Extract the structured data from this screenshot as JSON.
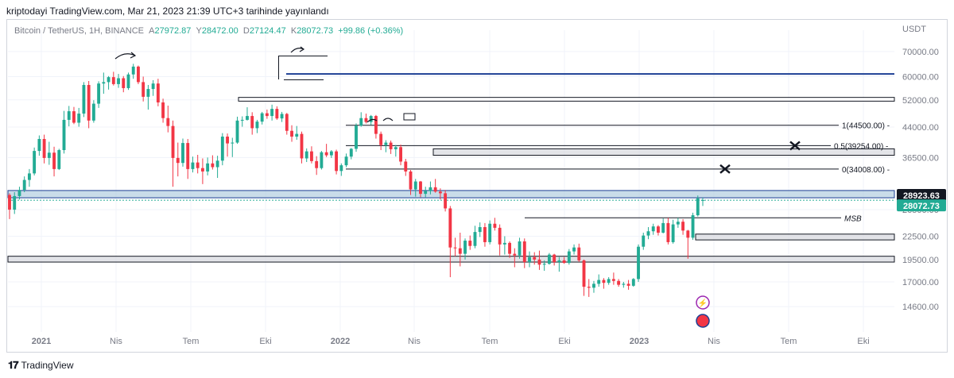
{
  "header": {
    "published": "kriptodayi TradingView.com, Mar 21, 2023 21:39 UTC+3 tarihinde yayınlandı"
  },
  "legend": {
    "symbol": "Bitcoin / TetherUS, 1H, BINANCE",
    "open_label": "A",
    "open": "27972.87",
    "high_label": "Y",
    "high": "28472.00",
    "low_label": "D",
    "low": "27124.47",
    "close_label": "K",
    "close": "28072.73",
    "change": "+99.86 (+0.36%)"
  },
  "footer": {
    "brand": "TradingView"
  },
  "colors": {
    "up": "#22ab94",
    "down": "#f23645",
    "blue_line": "#1c3f94",
    "zone_fill": "#b2cde0",
    "gray_fill": "#d7d9de",
    "price_badge": "#131722",
    "last_badge": "#22ab94"
  },
  "chart_data": {
    "type": "candlestick",
    "y_axis_label": "USDT",
    "y_scale": "log",
    "ylim": [
      12500,
      76000
    ],
    "y_ticks": [
      "70000.00",
      "60000.00",
      "52000.00",
      "44000.00",
      "36500.00",
      "26500.00",
      "22500.00",
      "19500.00",
      "17000.00",
      "14600.00"
    ],
    "x_ticks": [
      "2021",
      "Nis",
      "Tem",
      "Eki",
      "2022",
      "Nis",
      "Tem",
      "Eki",
      "2023",
      "Nis",
      "Tem",
      "Eki"
    ],
    "current_price_badge": "28072.73",
    "level_badge": "28923.63",
    "horizontal_lines": [
      {
        "name": "blue-resistance-line",
        "price": 61000
      },
      {
        "name": "fib-1-line",
        "price": 44500,
        "label": "1(44500.00)"
      },
      {
        "name": "fib-05-line",
        "price": 39254,
        "label": "0.5(39254.00)"
      },
      {
        "name": "fib-0-line",
        "price": 34008,
        "label": "0(34008.00)"
      },
      {
        "name": "msb-line",
        "price": 25200,
        "label": "MSB"
      }
    ],
    "zones": [
      {
        "name": "demand-zone-blue",
        "top": 29800,
        "bottom": 28500
      },
      {
        "name": "black-box-52k",
        "top": 52800,
        "bottom": 51600
      },
      {
        "name": "gray-zone-38k",
        "top": 38500,
        "bottom": 37000
      },
      {
        "name": "gray-zone-22k",
        "top": 22800,
        "bottom": 22000
      },
      {
        "name": "gray-zone-19k",
        "top": 19900,
        "bottom": 19200
      }
    ],
    "candles": [
      [
        29000,
        29300,
        25000,
        26500
      ],
      [
        26500,
        29500,
        25800,
        28800
      ],
      [
        28800,
        30500,
        28200,
        29900
      ],
      [
        29900,
        32500,
        29500,
        31800
      ],
      [
        31800,
        34000,
        30500,
        33100
      ],
      [
        33100,
        38800,
        32700,
        38000
      ],
      [
        38000,
        41800,
        36900,
        40900
      ],
      [
        40900,
        42000,
        35200,
        36400
      ],
      [
        36400,
        40200,
        34900,
        37600
      ],
      [
        37600,
        39000,
        32500,
        34000
      ],
      [
        34000,
        38500,
        33800,
        38200
      ],
      [
        38200,
        48600,
        37400,
        46000
      ],
      [
        46000,
        50100,
        44200,
        48500
      ],
      [
        48500,
        49800,
        44800,
        45200
      ],
      [
        45200,
        49500,
        44100,
        47800
      ],
      [
        47800,
        58000,
        46800,
        57000
      ],
      [
        57000,
        58400,
        43700,
        45800
      ],
      [
        45800,
        51900,
        45200,
        50800
      ],
      [
        50800,
        58300,
        49500,
        57500
      ],
      [
        57500,
        61500,
        54000,
        58000
      ],
      [
        58000,
        60200,
        55400,
        59800
      ],
      [
        59800,
        61800,
        56800,
        57300
      ],
      [
        57300,
        61000,
        56000,
        59400
      ],
      [
        59400,
        60200,
        54500,
        55900
      ],
      [
        55900,
        61500,
        55300,
        60800
      ],
      [
        60800,
        64900,
        59200,
        63800
      ],
      [
        63800,
        64200,
        57300,
        58000
      ],
      [
        58000,
        60000,
        51500,
        53000
      ],
      [
        53000,
        57000,
        49000,
        55600
      ],
      [
        55600,
        58700,
        53300,
        57500
      ],
      [
        57500,
        59200,
        50000,
        51200
      ],
      [
        51200,
        52400,
        45200,
        46500
      ],
      [
        46500,
        50200,
        42600,
        44300
      ],
      [
        44300,
        45800,
        30500,
        36400
      ],
      [
        36400,
        40000,
        32500,
        35300
      ],
      [
        35300,
        41000,
        34500,
        39900
      ],
      [
        39900,
        40900,
        32000,
        34000
      ],
      [
        34000,
        36700,
        33300,
        35400
      ],
      [
        35400,
        37100,
        33100,
        34200
      ],
      [
        34200,
        36300,
        31000,
        33500
      ],
      [
        33500,
        36500,
        32700,
        35200
      ],
      [
        35200,
        37000,
        33900,
        34400
      ],
      [
        34400,
        36900,
        32200,
        35800
      ],
      [
        35800,
        42400,
        34800,
        41500
      ],
      [
        41500,
        42300,
        36700,
        39800
      ],
      [
        39800,
        41200,
        36600,
        40000
      ],
      [
        40000,
        46900,
        39700,
        45800
      ],
      [
        45800,
        47000,
        44100,
        46000
      ],
      [
        46000,
        49700,
        45800,
        47100
      ],
      [
        47100,
        48200,
        42000,
        43700
      ],
      [
        43700,
        46000,
        42400,
        45500
      ],
      [
        45500,
        48300,
        44700,
        47900
      ],
      [
        47900,
        49000,
        46300,
        47100
      ],
      [
        47100,
        50500,
        45800,
        49200
      ],
      [
        49200,
        50000,
        46000,
        46400
      ],
      [
        46400,
        48300,
        45400,
        47700
      ],
      [
        47700,
        48000,
        42000,
        43000
      ],
      [
        43000,
        44500,
        40200,
        41500
      ],
      [
        41500,
        44300,
        40700,
        42200
      ],
      [
        42200,
        42800,
        35200,
        36300
      ],
      [
        36300,
        38600,
        35500,
        37900
      ],
      [
        37900,
        39100,
        35200,
        35700
      ],
      [
        35700,
        36800,
        32800,
        34200
      ],
      [
        34200,
        38000,
        33900,
        37700
      ],
      [
        37700,
        39700,
        36600,
        37000
      ],
      [
        37000,
        38200,
        36400,
        37900
      ],
      [
        37900,
        38300,
        32900,
        33600
      ],
      [
        33600,
        35200,
        32600,
        34800
      ],
      [
        34800,
        37400,
        34400,
        36700
      ],
      [
        36700,
        38700,
        36100,
        38500
      ],
      [
        38500,
        45000,
        37800,
        44400
      ],
      [
        44400,
        48200,
        44100,
        46500
      ],
      [
        46500,
        47800,
        45000,
        45400
      ],
      [
        45400,
        47400,
        44600,
        47100
      ],
      [
        47100,
        47400,
        41000,
        42200
      ],
      [
        42200,
        42800,
        38200,
        39400
      ],
      [
        39400,
        40600,
        37700,
        40000
      ],
      [
        40000,
        40500,
        37300,
        38400
      ],
      [
        38400,
        39400,
        36700,
        38900
      ],
      [
        38900,
        39500,
        34800,
        35600
      ],
      [
        35600,
        36200,
        32600,
        33500
      ],
      [
        33500,
        33800,
        29000,
        30000
      ],
      [
        30000,
        32000,
        28700,
        31500
      ],
      [
        31500,
        31600,
        28600,
        29200
      ],
      [
        29200,
        30500,
        28600,
        29700
      ],
      [
        29700,
        31500,
        29100,
        30400
      ],
      [
        30400,
        32000,
        29400,
        29600
      ],
      [
        29600,
        30200,
        28200,
        29300
      ],
      [
        29300,
        29900,
        26200,
        26700
      ],
      [
        26700,
        27100,
        17500,
        21000
      ],
      [
        21000,
        22300,
        19900,
        20900
      ],
      [
        20900,
        23000,
        18700,
        20200
      ],
      [
        20200,
        22200,
        19500,
        21900
      ],
      [
        21900,
        22600,
        20700,
        21200
      ],
      [
        21200,
        24000,
        20900,
        23100
      ],
      [
        23100,
        24500,
        22400,
        23800
      ],
      [
        23800,
        24400,
        21100,
        21700
      ],
      [
        21700,
        24800,
        21400,
        24300
      ],
      [
        24300,
        25200,
        23300,
        23700
      ],
      [
        23700,
        24200,
        20000,
        21400
      ],
      [
        21400,
        22500,
        20100,
        21600
      ],
      [
        21600,
        21800,
        19700,
        20200
      ],
      [
        20200,
        20900,
        18600,
        20000
      ],
      [
        20000,
        22300,
        19600,
        21800
      ],
      [
        21800,
        22200,
        18500,
        19200
      ],
      [
        19200,
        20500,
        18600,
        19800
      ],
      [
        19800,
        20400,
        18900,
        19500
      ],
      [
        19500,
        20600,
        18300,
        18900
      ],
      [
        18900,
        19400,
        18200,
        19000
      ],
      [
        19000,
        20300,
        18900,
        20100
      ],
      [
        20100,
        20200,
        18800,
        19200
      ],
      [
        19200,
        19800,
        18100,
        19400
      ],
      [
        19400,
        19800,
        19000,
        19100
      ],
      [
        19100,
        20800,
        18900,
        20500
      ],
      [
        20500,
        21400,
        20100,
        21000
      ],
      [
        21000,
        21500,
        19200,
        19400
      ],
      [
        19400,
        19500,
        15600,
        16500
      ],
      [
        16500,
        17300,
        15500,
        16400
      ],
      [
        16400,
        17100,
        15900,
        16800
      ],
      [
        16800,
        17800,
        16500,
        17200
      ],
      [
        17200,
        17400,
        16300,
        16900
      ],
      [
        16900,
        17500,
        16700,
        17300
      ],
      [
        17300,
        18000,
        16700,
        17100
      ],
      [
        17100,
        17300,
        16500,
        16700
      ],
      [
        16700,
        17000,
        16400,
        16800
      ],
      [
        16800,
        17200,
        16200,
        16600
      ],
      [
        16600,
        17400,
        16500,
        17300
      ],
      [
        17300,
        21400,
        17000,
        21100
      ],
      [
        21100,
        23000,
        20700,
        22600
      ],
      [
        22600,
        23800,
        22100,
        23200
      ],
      [
        23200,
        24300,
        22700,
        23900
      ],
      [
        23900,
        24100,
        22600,
        23000
      ],
      [
        23000,
        25100,
        22900,
        24400
      ],
      [
        24400,
        25200,
        21400,
        21700
      ],
      [
        21700,
        24900,
        21500,
        24200
      ],
      [
        24200,
        25200,
        23700,
        24600
      ],
      [
        24600,
        25000,
        22700,
        23300
      ],
      [
        23300,
        23400,
        19600,
        22300
      ],
      [
        22300,
        26000,
        22000,
        25600
      ],
      [
        25600,
        28900,
        25400,
        28400
      ],
      [
        28000,
        28500,
        27100,
        28100
      ]
    ]
  }
}
